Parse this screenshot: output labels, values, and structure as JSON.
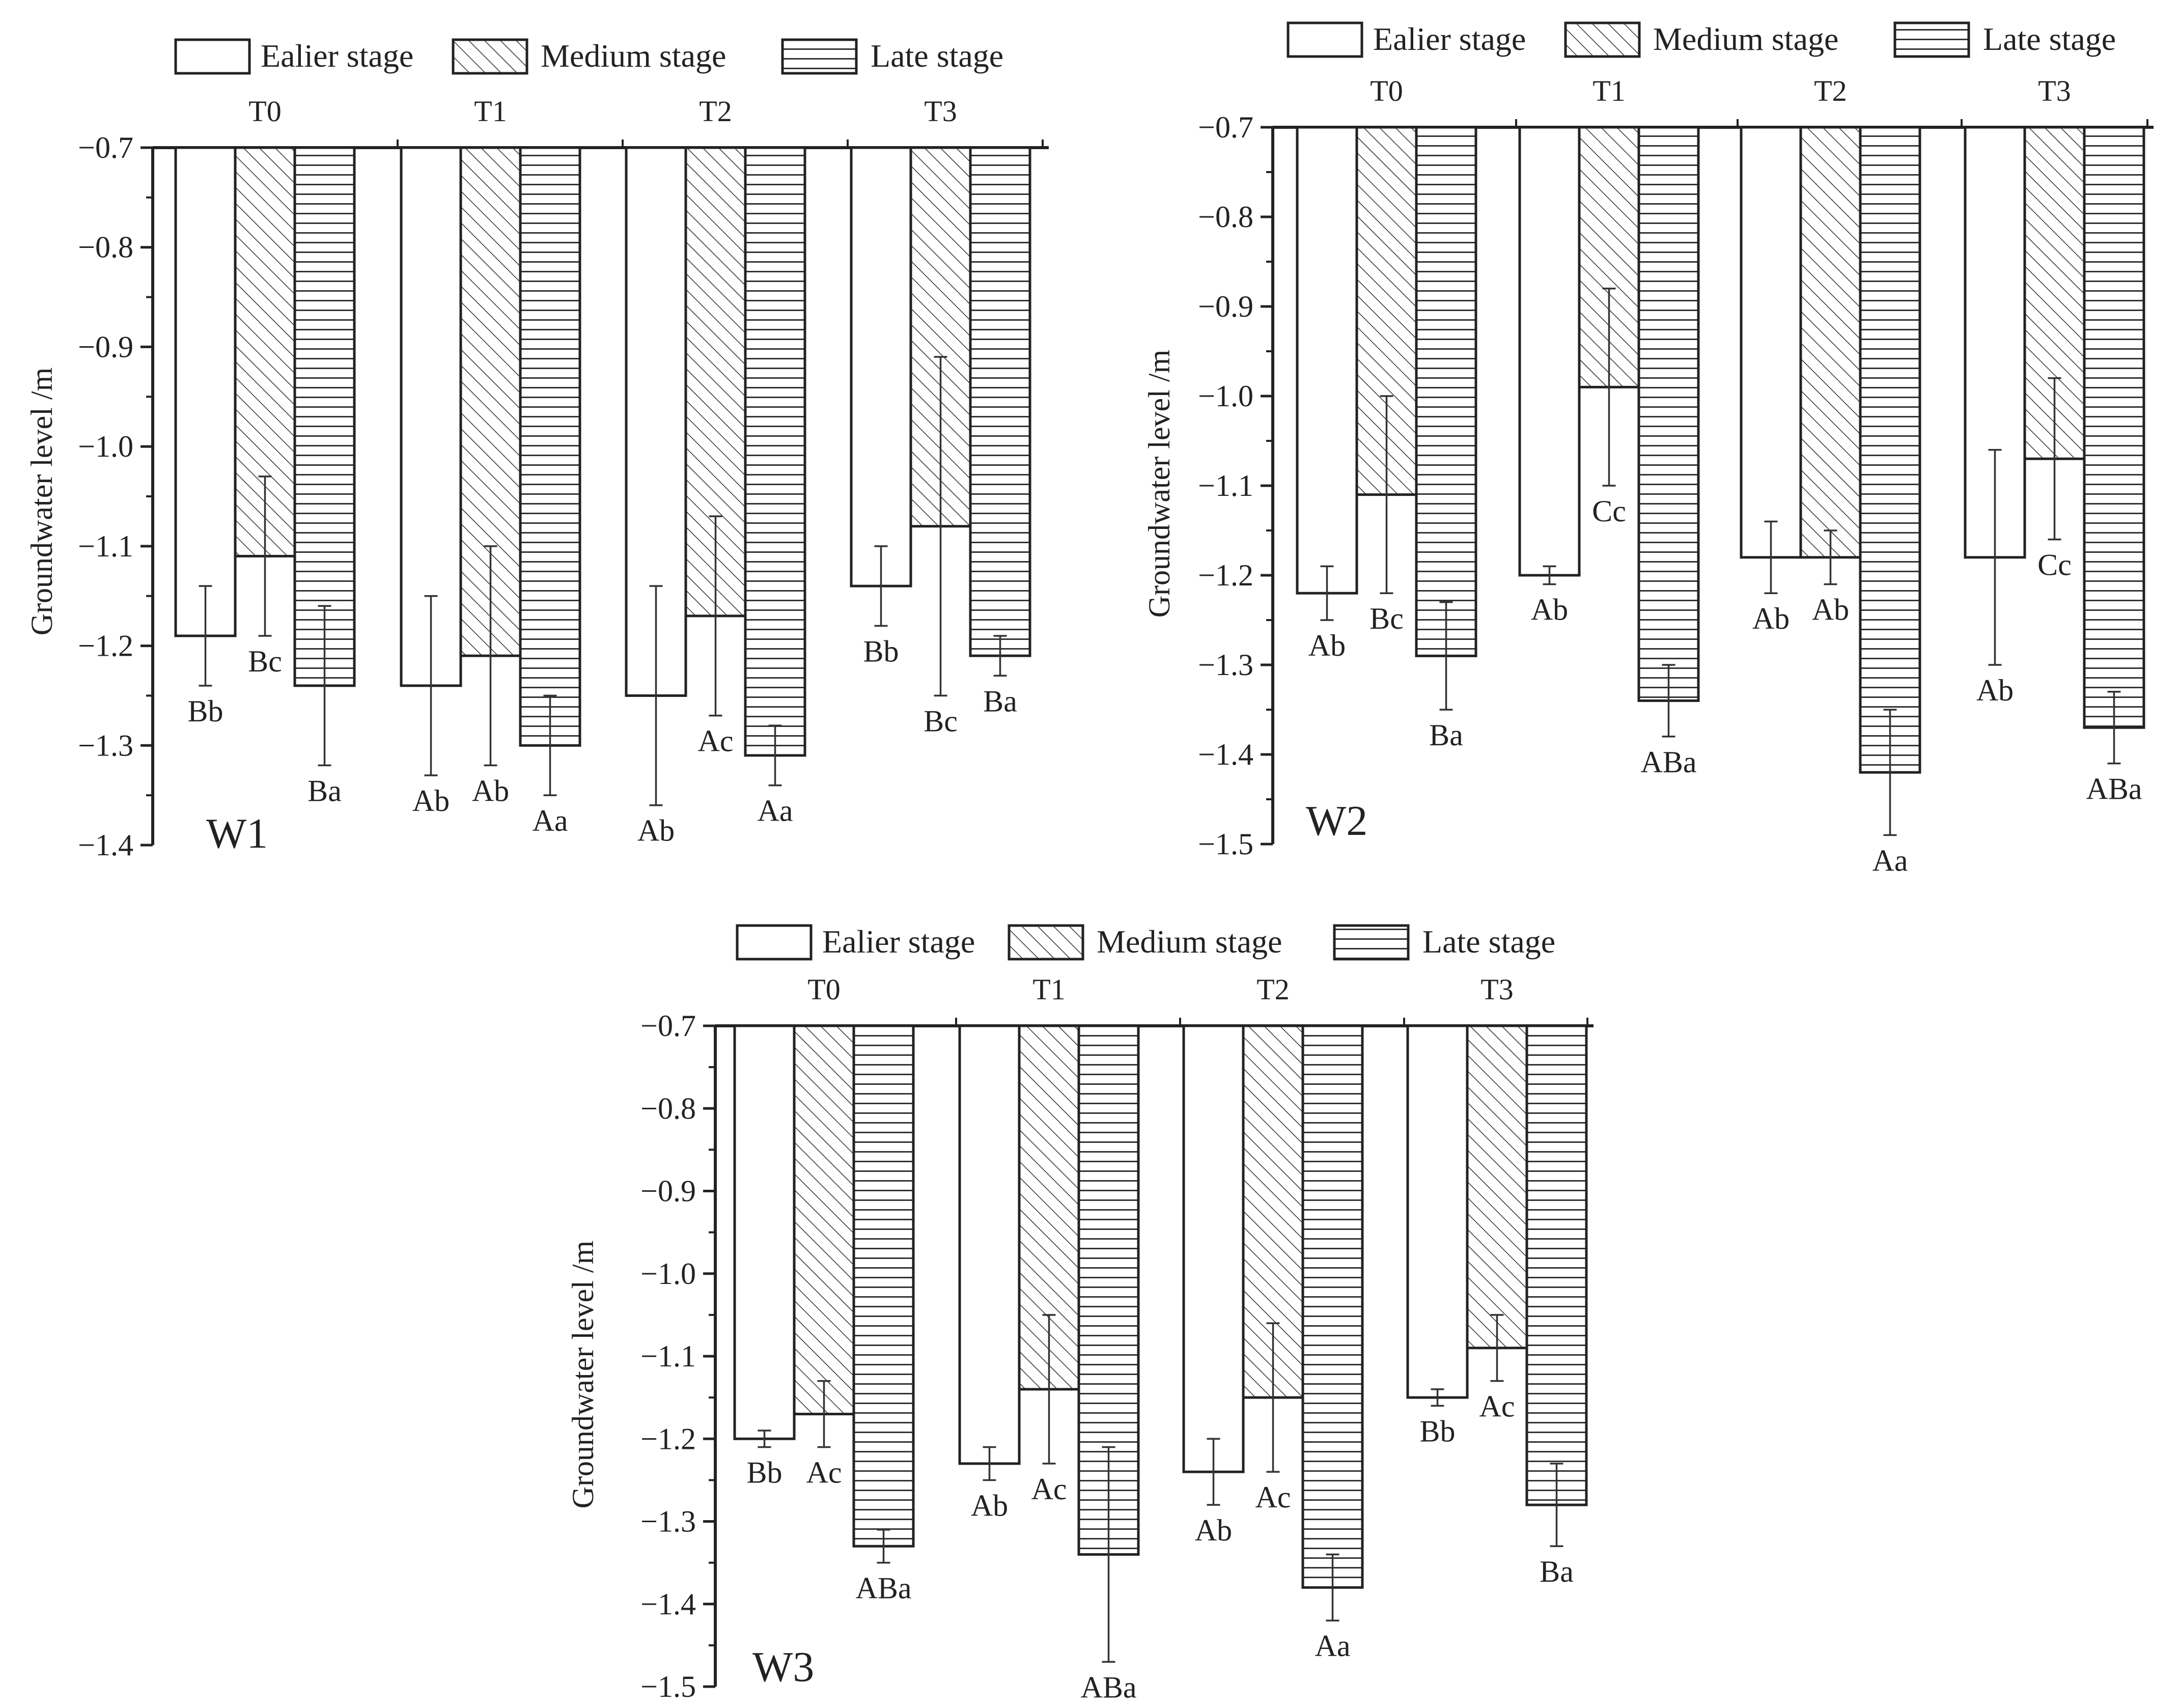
{
  "legend": [
    "Ealier stage",
    "Medium stage",
    "Late stage"
  ],
  "chart_data": [
    {
      "type": "bar",
      "panel_label": "W1",
      "title": "",
      "xlabel": "",
      "ylabel": "Groundwater level /m",
      "ylim": [
        -1.4,
        -0.7
      ],
      "yticks": [
        -0.7,
        -0.8,
        -0.9,
        -1.0,
        -1.1,
        -1.2,
        -1.3,
        -1.4
      ],
      "ytick_labels": [
        "−0.7",
        "−0.8",
        "−0.9",
        "−1.0",
        "−1.1",
        "−1.2",
        "−1.3",
        "−1.4"
      ],
      "categories": [
        "T0",
        "T1",
        "T2",
        "T3"
      ],
      "series": [
        {
          "name": "Ealier stage",
          "pattern": "blank",
          "values": [
            -1.19,
            -1.24,
            -1.25,
            -1.14
          ],
          "errors": [
            0.05,
            0.09,
            0.11,
            0.04
          ],
          "labels": [
            "Bb",
            "Ab",
            "Ab",
            "Bb"
          ]
        },
        {
          "name": "Medium stage",
          "pattern": "diagonal",
          "values": [
            -1.11,
            -1.21,
            -1.17,
            -1.08
          ],
          "errors": [
            0.08,
            0.11,
            0.1,
            0.17
          ],
          "labels": [
            "Bc",
            "Ab",
            "Ac",
            "Bc"
          ]
        },
        {
          "name": "Late stage",
          "pattern": "horizontal",
          "values": [
            -1.24,
            -1.3,
            -1.31,
            -1.21
          ],
          "errors": [
            0.08,
            0.05,
            0.03,
            0.02
          ],
          "labels": [
            "Ba",
            "Aa",
            "Aa",
            "Ba"
          ]
        }
      ],
      "legend_position": "top",
      "grid": false
    },
    {
      "type": "bar",
      "panel_label": "W2",
      "title": "",
      "xlabel": "",
      "ylabel": "Groundwater level /m",
      "ylim": [
        -1.5,
        -0.7
      ],
      "yticks": [
        -0.7,
        -0.8,
        -0.9,
        -1.0,
        -1.1,
        -1.2,
        -1.3,
        -1.4,
        -1.5
      ],
      "ytick_labels": [
        "−0.7",
        "−0.8",
        "−0.9",
        "−1.0",
        "−1.1",
        "−1.2",
        "−1.3",
        "−1.4",
        "−1.5"
      ],
      "categories": [
        "T0",
        "T1",
        "T2",
        "T3"
      ],
      "series": [
        {
          "name": "Ealier stage",
          "pattern": "blank",
          "values": [
            -1.22,
            -1.2,
            -1.18,
            -1.18
          ],
          "errors": [
            0.03,
            0.01,
            0.04,
            0.12
          ],
          "labels": [
            "Ab",
            "Ab",
            "Ab",
            "Ab"
          ]
        },
        {
          "name": "Medium stage",
          "pattern": "diagonal",
          "values": [
            -1.11,
            -0.99,
            -1.18,
            -1.07
          ],
          "errors": [
            0.11,
            0.11,
            0.03,
            0.09
          ],
          "labels": [
            "Bc",
            "Cc",
            "Ab",
            "Cc"
          ]
        },
        {
          "name": "Late stage",
          "pattern": "horizontal",
          "values": [
            -1.29,
            -1.34,
            -1.42,
            -1.37
          ],
          "errors": [
            0.06,
            0.04,
            0.07,
            0.04
          ],
          "labels": [
            "Ba",
            "ABa",
            "Aa",
            "ABa"
          ]
        }
      ],
      "legend_position": "top",
      "grid": false
    },
    {
      "type": "bar",
      "panel_label": "W3",
      "title": "",
      "xlabel": "",
      "ylabel": "Groundwater level /m",
      "ylim": [
        -1.5,
        -0.7
      ],
      "yticks": [
        -0.7,
        -0.8,
        -0.9,
        -1.0,
        -1.1,
        -1.2,
        -1.3,
        -1.4,
        -1.5
      ],
      "ytick_labels": [
        "−0.7",
        "−0.8",
        "−0.9",
        "−1.0",
        "−1.1",
        "−1.2",
        "−1.3",
        "−1.4",
        "−1.5"
      ],
      "categories": [
        "T0",
        "T1",
        "T2",
        "T3"
      ],
      "series": [
        {
          "name": "Ealier stage",
          "pattern": "blank",
          "values": [
            -1.2,
            -1.23,
            -1.24,
            -1.15
          ],
          "errors": [
            0.01,
            0.02,
            0.04,
            0.01
          ],
          "labels": [
            "Bb",
            "Ab",
            "Ab",
            "Bb"
          ]
        },
        {
          "name": "Medium stage",
          "pattern": "diagonal",
          "values": [
            -1.17,
            -1.14,
            -1.15,
            -1.09
          ],
          "errors": [
            0.04,
            0.09,
            0.09,
            0.04
          ],
          "labels": [
            "Ac",
            "Ac",
            "Ac",
            "Ac"
          ]
        },
        {
          "name": "Late stage",
          "pattern": "horizontal",
          "values": [
            -1.33,
            -1.34,
            -1.38,
            -1.28
          ],
          "errors": [
            0.02,
            0.13,
            0.04,
            0.05
          ],
          "labels": [
            "ABa",
            "ABa",
            "Aa",
            "Ba"
          ]
        }
      ],
      "legend_position": "top",
      "grid": false
    }
  ]
}
